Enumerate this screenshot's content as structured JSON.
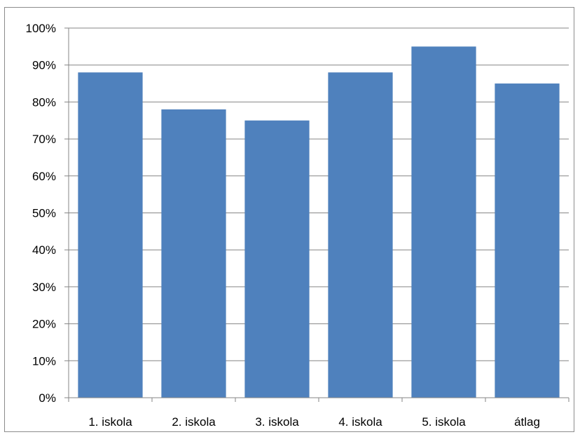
{
  "chart_data": {
    "type": "bar",
    "title": "",
    "xlabel": "",
    "ylabel": "",
    "categories": [
      "1. iskola",
      "2. iskola",
      "3. iskola",
      "4. iskola",
      "5. iskola",
      "átlag"
    ],
    "values": [
      88,
      78,
      75,
      88,
      95,
      85
    ],
    "value_unit": "%",
    "ylim": [
      0,
      100
    ],
    "y_ticks": [
      "0%",
      "10%",
      "20%",
      "30%",
      "40%",
      "50%",
      "60%",
      "70%",
      "80%",
      "90%",
      "100%"
    ],
    "grid": true,
    "legend": "none",
    "bar_color": "#4f81bd"
  }
}
